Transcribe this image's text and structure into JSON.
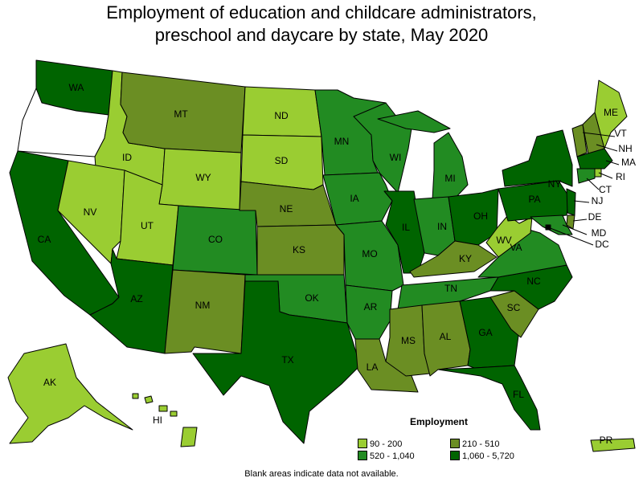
{
  "title_line1": "Employment of education and childcare administrators,",
  "title_line2": "preschool and daycare by state, May 2020",
  "legend": {
    "title": "Employment",
    "bins": [
      {
        "label": "90 - 200",
        "color": "#9acd32"
      },
      {
        "label": "210 - 510",
        "color": "#6b8e23"
      },
      {
        "label": "520 - 1,040",
        "color": "#228b22"
      },
      {
        "label": "1,060 - 5,720",
        "color": "#006400"
      }
    ]
  },
  "footnote": "Blank areas indicate data not available.",
  "colors": {
    "no_data": "#ffffff",
    "border": "#000000"
  },
  "states": {
    "WA": {
      "label": "WA",
      "bin": 3
    },
    "OR": {
      "label": "",
      "bin": -1
    },
    "CA": {
      "label": "CA",
      "bin": 3
    },
    "ID": {
      "label": "ID",
      "bin": 0
    },
    "NV": {
      "label": "NV",
      "bin": 0
    },
    "MT": {
      "label": "MT",
      "bin": 1
    },
    "WY": {
      "label": "WY",
      "bin": 0
    },
    "UT": {
      "label": "UT",
      "bin": 0
    },
    "AZ": {
      "label": "AZ",
      "bin": 3
    },
    "CO": {
      "label": "CO",
      "bin": 2
    },
    "NM": {
      "label": "NM",
      "bin": 1
    },
    "ND": {
      "label": "ND",
      "bin": 0
    },
    "SD": {
      "label": "SD",
      "bin": 0
    },
    "NE": {
      "label": "NE",
      "bin": 1
    },
    "KS": {
      "label": "KS",
      "bin": 1
    },
    "OK": {
      "label": "OK",
      "bin": 2
    },
    "TX": {
      "label": "TX",
      "bin": 3
    },
    "MN": {
      "label": "MN",
      "bin": 2
    },
    "IA": {
      "label": "IA",
      "bin": 2
    },
    "MO": {
      "label": "MO",
      "bin": 2
    },
    "AR": {
      "label": "AR",
      "bin": 2
    },
    "LA": {
      "label": "LA",
      "bin": 1
    },
    "WI": {
      "label": "WI",
      "bin": 2
    },
    "IL": {
      "label": "IL",
      "bin": 3
    },
    "MI": {
      "label": "MI",
      "bin": 2
    },
    "IN": {
      "label": "IN",
      "bin": 2
    },
    "OH": {
      "label": "OH",
      "bin": 3
    },
    "KY": {
      "label": "KY",
      "bin": 1
    },
    "TN": {
      "label": "TN",
      "bin": 2
    },
    "MS": {
      "label": "MS",
      "bin": 1
    },
    "AL": {
      "label": "AL",
      "bin": 1
    },
    "GA": {
      "label": "GA",
      "bin": 3
    },
    "FL": {
      "label": "FL",
      "bin": 3
    },
    "SC": {
      "label": "SC",
      "bin": 1
    },
    "NC": {
      "label": "NC",
      "bin": 3
    },
    "VA": {
      "label": "VA",
      "bin": 2
    },
    "WV": {
      "label": "WV",
      "bin": 0
    },
    "PA": {
      "label": "PA",
      "bin": 3
    },
    "NY": {
      "label": "NY",
      "bin": 3
    },
    "ME": {
      "label": "ME",
      "bin": 0
    },
    "VT": {
      "label": "VT",
      "bin": 1
    },
    "NH": {
      "label": "NH",
      "bin": 1
    },
    "MA": {
      "label": "MA",
      "bin": 3
    },
    "RI": {
      "label": "RI",
      "bin": 0
    },
    "CT": {
      "label": "CT",
      "bin": 2
    },
    "NJ": {
      "label": "NJ",
      "bin": 3
    },
    "DE": {
      "label": "DE",
      "bin": 1
    },
    "MD": {
      "label": "MD",
      "bin": 2
    },
    "DC": {
      "label": "DC",
      "bin": 3
    },
    "AK": {
      "label": "AK",
      "bin": 0
    },
    "HI": {
      "label": "HI",
      "bin": 0
    },
    "PR": {
      "label": "PR",
      "bin": 0
    }
  }
}
